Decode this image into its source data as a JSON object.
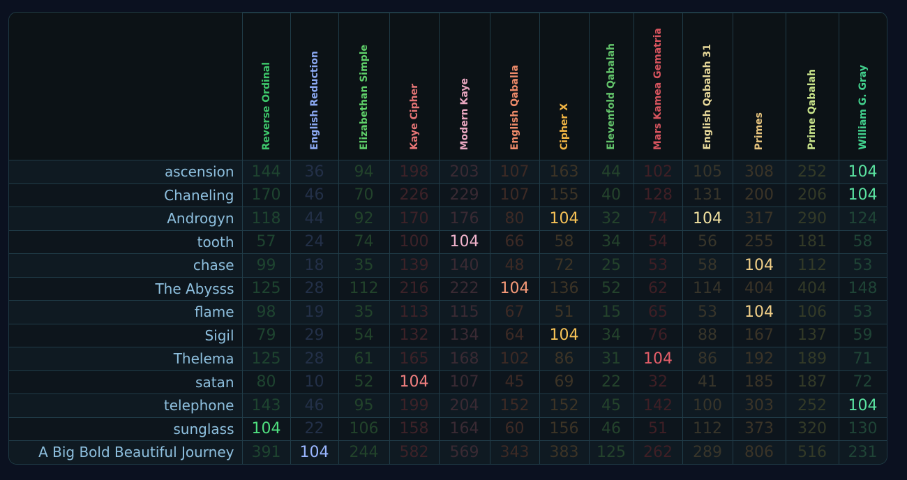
{
  "ciphers": [
    {
      "name": "Reverse Ordinal",
      "color": "#3ec76b",
      "dim": "#1e4430",
      "hit": "#4fe07f"
    },
    {
      "name": "English Reduction",
      "color": "#8aa7f0",
      "dim": "#233048",
      "hit": "#9ab6ff"
    },
    {
      "name": "Elizabethan Simple",
      "color": "#5fd06a",
      "dim": "#22432b",
      "hit": "#6ee07a"
    },
    {
      "name": "Kaye Cipher",
      "color": "#e77576",
      "dim": "#3d2228",
      "hit": "#f17f7f"
    },
    {
      "name": "Modern Kaye",
      "color": "#e9a7c0",
      "dim": "#3a2a33",
      "hit": "#f2b4cc"
    },
    {
      "name": "English Qaballa",
      "color": "#ef8b6a",
      "dim": "#3d2a25",
      "hit": "#f69a78"
    },
    {
      "name": "Cipher X",
      "color": "#f2b544",
      "dim": "#3d3426",
      "hit": "#f7c256"
    },
    {
      "name": "Elevenfold Qabalah",
      "color": "#63c46b",
      "dim": "#24432c",
      "hit": "#70d478"
    },
    {
      "name": "Mars Kamea Gematria",
      "color": "#d7545e",
      "dim": "#3f1f25",
      "hit": "#e55e69"
    },
    {
      "name": "English Qabalah 31",
      "color": "#e8d99a",
      "dim": "#38352a",
      "hit": "#f1e1a0"
    },
    {
      "name": "Primes",
      "color": "#e7c47e",
      "dim": "#3b3427",
      "hit": "#f1cf87"
    },
    {
      "name": "Prime Qabalah",
      "color": "#c9e48a",
      "dim": "#333a27",
      "hit": "#d6f097"
    },
    {
      "name": "William G. Gray",
      "color": "#42d18d",
      "dim": "#1f4436",
      "hit": "#5ae3a0"
    }
  ],
  "rows": [
    {
      "phrase": "ascension",
      "values": [
        "144",
        "36",
        "94",
        "198",
        "203",
        "107",
        "163",
        "44",
        "102",
        "105",
        "308",
        "252",
        "104"
      ],
      "hits": [
        12
      ]
    },
    {
      "phrase": "Chaneling",
      "values": [
        "170",
        "46",
        "70",
        "226",
        "229",
        "107",
        "155",
        "40",
        "128",
        "131",
        "200",
        "206",
        "104"
      ],
      "hits": [
        12
      ]
    },
    {
      "phrase": "Androgyn",
      "values": [
        "118",
        "44",
        "92",
        "170",
        "176",
        "80",
        "104",
        "32",
        "74",
        "104",
        "317",
        "290",
        "124"
      ],
      "hits": [
        6,
        9
      ]
    },
    {
      "phrase": "tooth",
      "values": [
        "57",
        "24",
        "74",
        "100",
        "104",
        "66",
        "58",
        "34",
        "54",
        "56",
        "255",
        "181",
        "58"
      ],
      "hits": [
        4
      ]
    },
    {
      "phrase": "chase",
      "values": [
        "99",
        "18",
        "35",
        "139",
        "140",
        "48",
        "72",
        "25",
        "53",
        "58",
        "104",
        "112",
        "53"
      ],
      "hits": [
        10
      ]
    },
    {
      "phrase": "The Abysss",
      "values": [
        "125",
        "28",
        "112",
        "216",
        "222",
        "104",
        "136",
        "52",
        "62",
        "114",
        "404",
        "404",
        "148"
      ],
      "hits": [
        5
      ]
    },
    {
      "phrase": "flame",
      "values": [
        "98",
        "19",
        "35",
        "113",
        "115",
        "67",
        "51",
        "15",
        "65",
        "53",
        "104",
        "106",
        "53"
      ],
      "hits": [
        10
      ]
    },
    {
      "phrase": "Sigil",
      "values": [
        "79",
        "29",
        "54",
        "132",
        "134",
        "64",
        "104",
        "34",
        "76",
        "88",
        "167",
        "137",
        "59"
      ],
      "hits": [
        6
      ]
    },
    {
      "phrase": "Thelema",
      "values": [
        "125",
        "28",
        "61",
        "165",
        "168",
        "102",
        "86",
        "31",
        "104",
        "86",
        "192",
        "189",
        "71"
      ],
      "hits": [
        8
      ]
    },
    {
      "phrase": "satan",
      "values": [
        "80",
        "10",
        "52",
        "104",
        "107",
        "45",
        "69",
        "22",
        "32",
        "41",
        "185",
        "187",
        "72"
      ],
      "hits": [
        3
      ]
    },
    {
      "phrase": "telephone",
      "values": [
        "143",
        "46",
        "95",
        "199",
        "204",
        "152",
        "152",
        "45",
        "142",
        "100",
        "303",
        "252",
        "104"
      ],
      "hits": [
        12
      ]
    },
    {
      "phrase": "sunglass",
      "values": [
        "104",
        "22",
        "106",
        "158",
        "164",
        "60",
        "156",
        "46",
        "51",
        "112",
        "373",
        "320",
        "130"
      ],
      "hits": [
        0
      ]
    },
    {
      "phrase": "A Big Bold Beautiful Journey",
      "values": [
        "391",
        "104",
        "244",
        "582",
        "569",
        "343",
        "383",
        "125",
        "262",
        "289",
        "806",
        "516",
        "231"
      ],
      "hits": [
        1
      ]
    }
  ]
}
